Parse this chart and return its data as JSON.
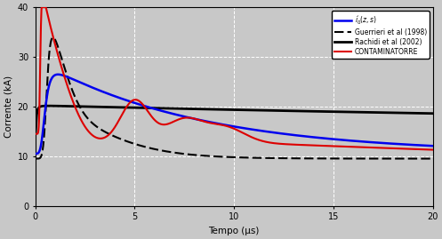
{
  "xlabel": "Tempo (μs)",
  "ylabel": "Corrente (kA)",
  "xlim": [
    0,
    20
  ],
  "ylim": [
    0,
    40
  ],
  "xticks": [
    0,
    5,
    10,
    15,
    20
  ],
  "yticks": [
    0,
    10,
    20,
    30,
    40
  ],
  "legend_entries": [
    {
      "label": "$i_0^{'}(z,s)$",
      "color": "#0000ee",
      "linestyle": "-",
      "linewidth": 1.8
    },
    {
      "label": "Guerrieri et al (1998)",
      "color": "#000000",
      "linestyle": "--",
      "linewidth": 1.5
    },
    {
      "label": "Rachidi et al (2002)",
      "color": "#000000",
      "linestyle": "-",
      "linewidth": 2.0
    },
    {
      "label": "CONTAMINATORRE",
      "color": "#dd0000",
      "linestyle": "-",
      "linewidth": 1.5
    }
  ],
  "fig_bg": "#c8c8c8",
  "ax_bg": "#c8c8c8",
  "grid_color": "#ffffff",
  "grid_style_major": "-",
  "grid_style_minor": "--"
}
